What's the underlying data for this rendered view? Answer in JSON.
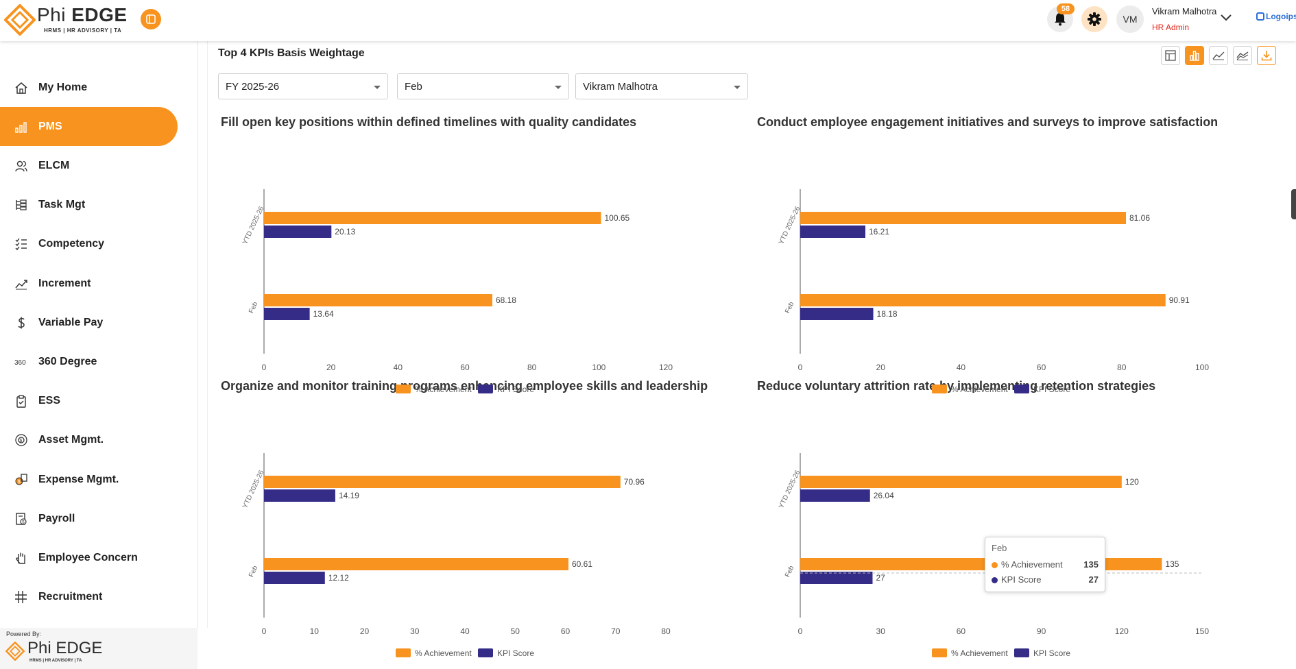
{
  "header": {
    "logo_word_light": "Phi",
    "logo_word_bold": "EDGE",
    "logo_sub": "HRMS | HR ADVISORY | TA",
    "notification_count": "58",
    "avatar_initials": "VM",
    "user_name": "Vikram Malhotra",
    "user_role": "HR Admin",
    "brand_logo": "Logoipsu"
  },
  "sidebar": {
    "items": [
      {
        "label": "My Home",
        "icon": "home-icon"
      },
      {
        "label": "PMS",
        "icon": "pms-icon"
      },
      {
        "label": "ELCM",
        "icon": "users-icon"
      },
      {
        "label": "Task Mgt",
        "icon": "task-icon"
      },
      {
        "label": "Competency",
        "icon": "checklist-icon"
      },
      {
        "label": "Increment",
        "icon": "trend-icon"
      },
      {
        "label": "Variable Pay",
        "icon": "dollar-icon"
      },
      {
        "label": "360 Degree",
        "icon": "360-icon"
      },
      {
        "label": "ESS",
        "icon": "clipboard-icon"
      },
      {
        "label": "Asset Mgmt.",
        "icon": "asset-icon"
      },
      {
        "label": "Expense Mgmt.",
        "icon": "expense-icon"
      },
      {
        "label": "Payroll",
        "icon": "payroll-icon"
      },
      {
        "label": "Employee Concern",
        "icon": "hand-icon"
      },
      {
        "label": "Recruitment",
        "icon": "grid-icon"
      }
    ],
    "powered_by": "Powered By:",
    "powered_word": "Phi EDGE",
    "powered_sub": "HRMS | HR ADVISORY | TA"
  },
  "main": {
    "title": "Top 4 KPIs Basis Weightage",
    "filters": {
      "year": "FY 2025-26",
      "month": "Feb",
      "employee": "Vikram Malhotra"
    }
  },
  "colors": {
    "achievement": "#f7931e",
    "kpi_score": "#352c87",
    "accent": "#f7931e"
  },
  "legend": {
    "achievement": "% Achievement",
    "kpi_score": "KPI Score"
  },
  "tooltip": {
    "title": "Feb",
    "achievement_label": "% Achievement",
    "achievement_value": "135",
    "kpi_label": "KPI Score",
    "kpi_value": "27"
  },
  "chart_data": [
    {
      "type": "bar",
      "orientation": "horizontal",
      "title": "Fill open key positions within defined timelines with quality candidates",
      "categories": [
        "YTD 2025-26",
        "Feb"
      ],
      "series": [
        {
          "name": "% Achievement",
          "values": [
            100.65,
            68.18
          ]
        },
        {
          "name": "KPI Score",
          "values": [
            20.13,
            13.64
          ]
        }
      ],
      "xlim": [
        0,
        120
      ],
      "xticks": [
        0,
        20,
        40,
        60,
        80,
        100,
        120
      ],
      "legend": "bottom"
    },
    {
      "type": "bar",
      "orientation": "horizontal",
      "title": "Conduct employee engagement initiatives and surveys to improve satisfaction",
      "categories": [
        "YTD 2025-26",
        "Feb"
      ],
      "series": [
        {
          "name": "% Achievement",
          "values": [
            81.06,
            90.91
          ]
        },
        {
          "name": "KPI Score",
          "values": [
            16.21,
            18.18
          ]
        }
      ],
      "xlim": [
        0,
        100
      ],
      "xticks": [
        0,
        20,
        40,
        60,
        80,
        100
      ],
      "legend": "bottom"
    },
    {
      "type": "bar",
      "orientation": "horizontal",
      "title": "Organize and monitor training programs enhancing employee skills and leadership",
      "categories": [
        "YTD 2025-26",
        "Feb"
      ],
      "series": [
        {
          "name": "% Achievement",
          "values": [
            70.96,
            60.61
          ]
        },
        {
          "name": "KPI Score",
          "values": [
            14.19,
            12.12
          ]
        }
      ],
      "xlim": [
        0,
        80
      ],
      "xticks": [
        0,
        10,
        20,
        30,
        40,
        50,
        60,
        70,
        80
      ],
      "legend": "bottom"
    },
    {
      "type": "bar",
      "orientation": "horizontal",
      "title": "Reduce voluntary attrition rate by implementing retention strategies",
      "categories": [
        "YTD 2025-26",
        "Feb"
      ],
      "series": [
        {
          "name": "% Achievement",
          "values": [
            120,
            135
          ]
        },
        {
          "name": "KPI Score",
          "values": [
            26.04,
            27
          ]
        }
      ],
      "xlim": [
        0,
        150
      ],
      "xticks": [
        0,
        30,
        60,
        90,
        120,
        150
      ],
      "legend": "bottom"
    }
  ]
}
